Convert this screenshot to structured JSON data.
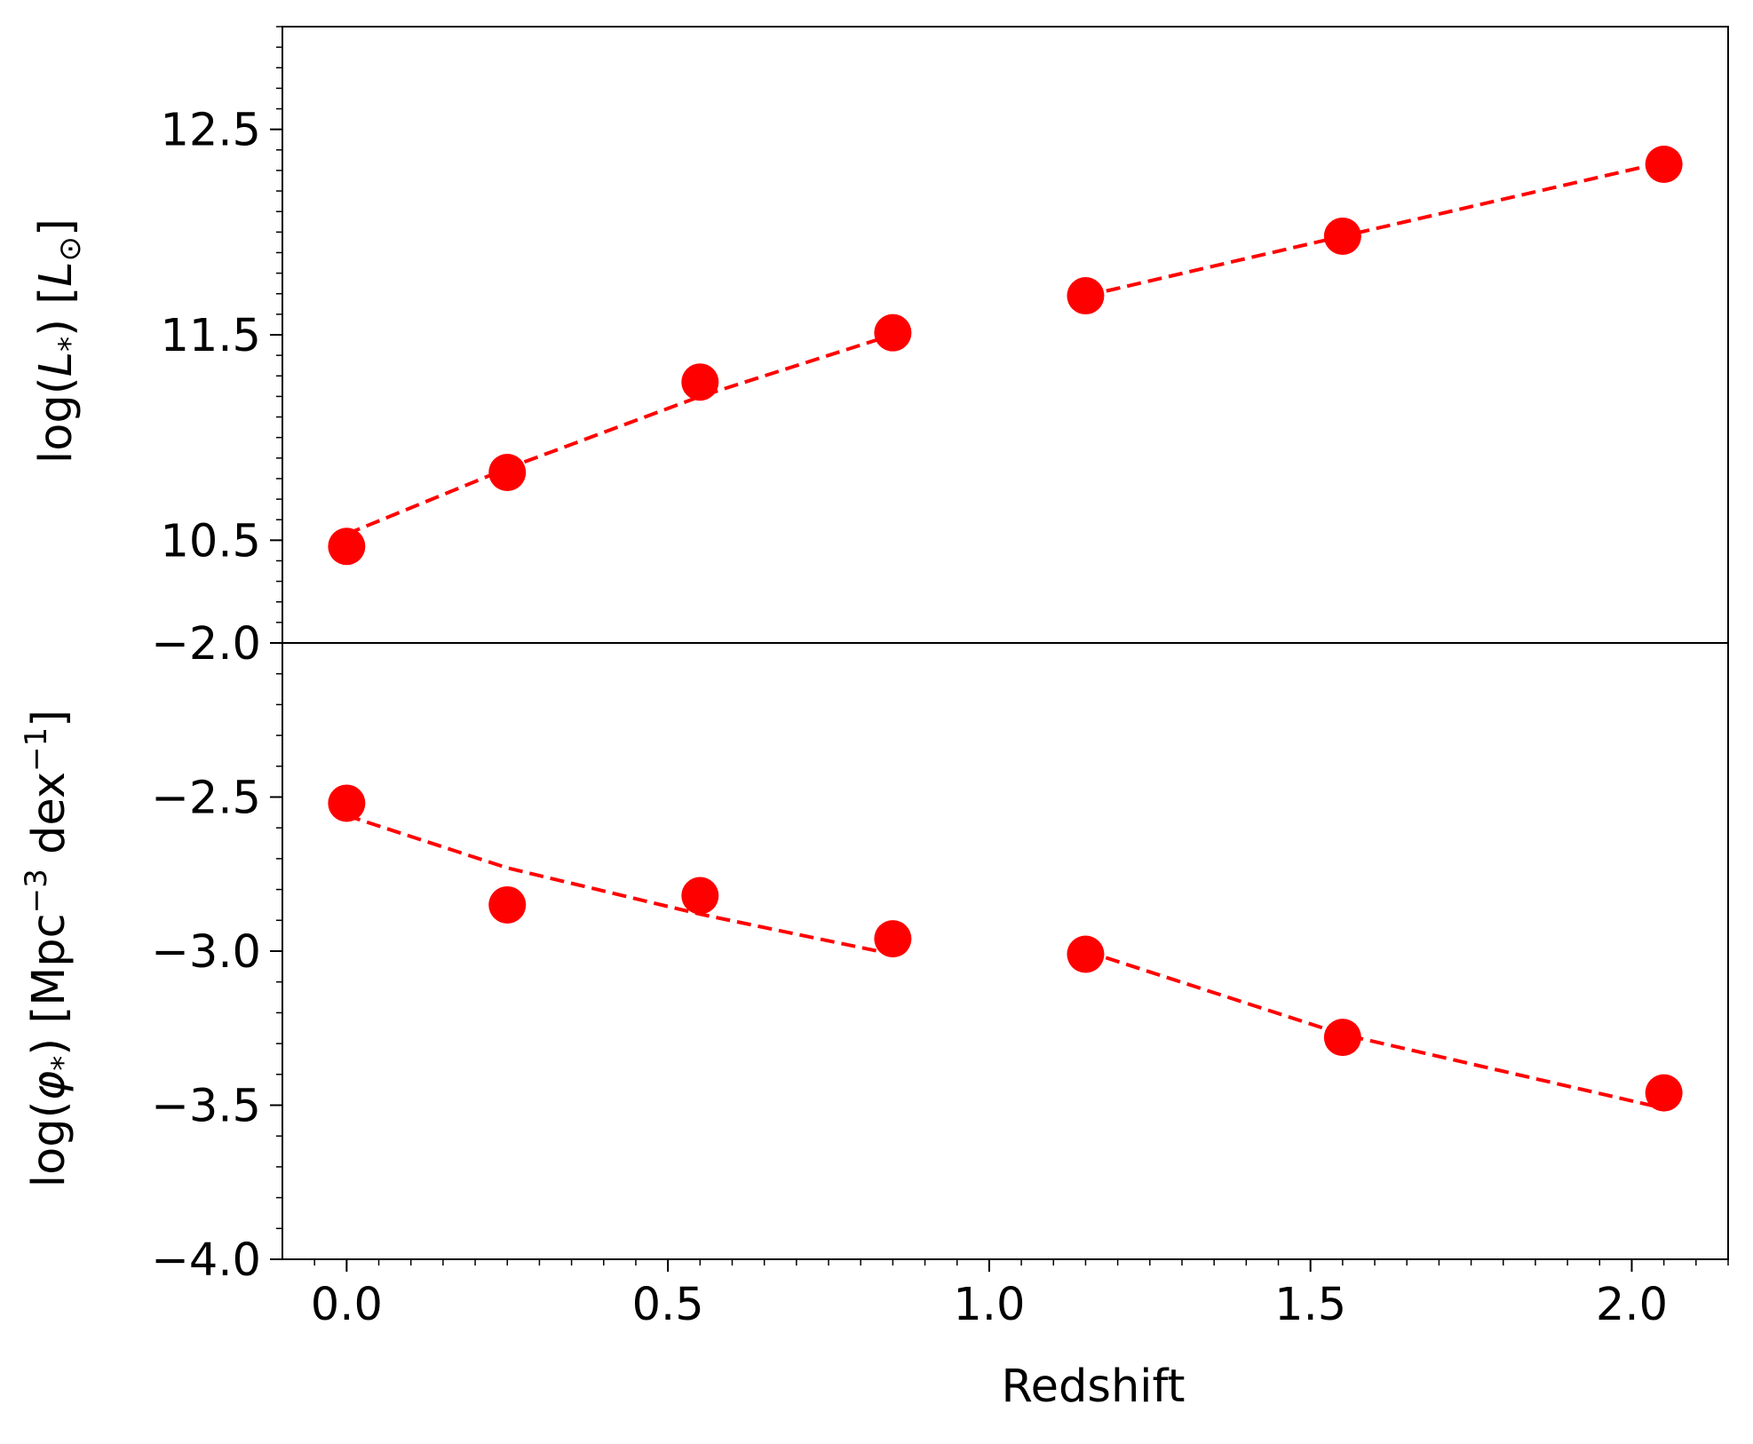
{
  "chart_data": [
    {
      "type": "scatter",
      "panel": "top",
      "ylabel_parts": [
        "log(",
        "L",
        "*",
        ") [",
        "L",
        "⊙",
        "]"
      ],
      "ylim": [
        10.0,
        13.0
      ],
      "xlim": [
        -0.1,
        2.15
      ],
      "yticks": [
        10.5,
        11.5,
        12.5
      ],
      "ytick_labels": [
        "10.5",
        "11.5",
        "12.5"
      ],
      "points": {
        "x": [
          0.0,
          0.25,
          0.55,
          0.85,
          1.15,
          1.55,
          2.05
        ],
        "y": [
          10.47,
          10.83,
          11.27,
          11.51,
          11.69,
          11.98,
          12.33
        ]
      },
      "fits": [
        {
          "x": [
            0.0,
            0.25,
            0.55,
            0.85
          ],
          "y": [
            10.53,
            10.85,
            11.2,
            11.5
          ]
        },
        {
          "x": [
            1.15,
            1.55,
            2.05
          ],
          "y": [
            11.69,
            11.98,
            12.34
          ]
        }
      ],
      "color": "#ff0000"
    },
    {
      "type": "scatter",
      "panel": "bottom",
      "ylabel_parts": [
        "log(",
        "φ",
        "*",
        ") [Mpc",
        "−3",
        " dex",
        "−1",
        "]"
      ],
      "xlabel": "Redshift",
      "ylim": [
        -4.0,
        -2.0
      ],
      "xlim": [
        -0.1,
        2.15
      ],
      "yticks": [
        -2.0,
        -2.5,
        -3.0,
        -3.5,
        -4.0
      ],
      "ytick_labels": [
        "−2.0",
        "−2.5",
        "−3.0",
        "−3.5",
        "−4.0"
      ],
      "xticks": [
        0.0,
        0.5,
        1.0,
        1.5,
        2.0
      ],
      "xtick_labels": [
        "0.0",
        "0.5",
        "1.0",
        "1.5",
        "2.0"
      ],
      "points": {
        "x": [
          0.0,
          0.25,
          0.55,
          0.85,
          1.15,
          1.55,
          2.05
        ],
        "y": [
          -2.52,
          -2.85,
          -2.82,
          -2.96,
          -3.01,
          -3.28,
          -3.46
        ]
      },
      "fits": [
        {
          "x": [
            0.0,
            0.25,
            0.55,
            0.85
          ],
          "y": [
            -2.56,
            -2.73,
            -2.88,
            -3.01
          ]
        },
        {
          "x": [
            1.15,
            1.55,
            2.05
          ],
          "y": [
            -3.0,
            -3.27,
            -3.51
          ]
        }
      ],
      "color": "#ff0000"
    }
  ]
}
